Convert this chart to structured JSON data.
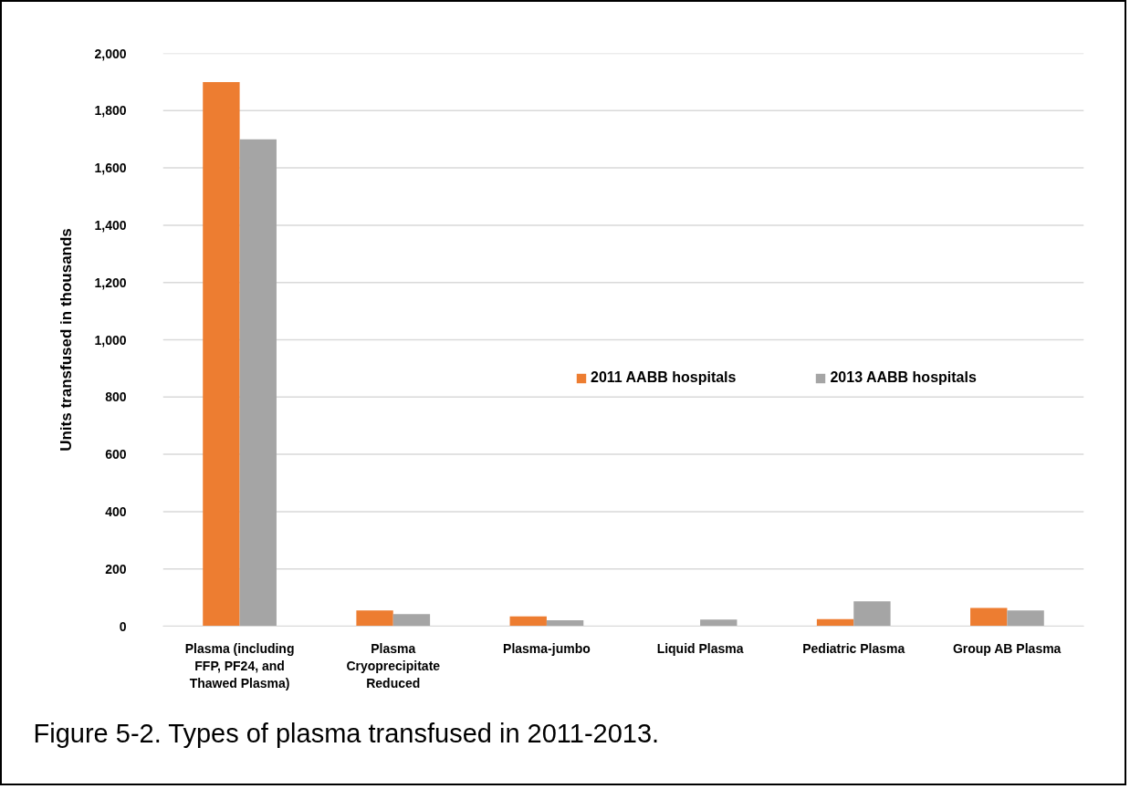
{
  "chart_data": {
    "type": "bar",
    "title": "Figure 5-2. Types of plasma transfused in 2011-2013.",
    "ylabel": "Units transfused in thousands",
    "categories": [
      "Plasma (including FFP, PF24, and Thawed Plasma)",
      "Plasma Cryoprecipitate Reduced",
      "Plasma-jumbo",
      "Liquid Plasma",
      "Pediatric Plasma",
      "Group AB Plasma"
    ],
    "series": [
      {
        "name": "2011 AABB hospitals",
        "color": "#ed7d31",
        "values": [
          1900,
          55,
          34,
          null,
          25,
          64
        ]
      },
      {
        "name": "2013 AABB hospitals",
        "color": "#a5a5a5",
        "values": [
          1700,
          42,
          21,
          23,
          87,
          55
        ]
      }
    ],
    "ylim": [
      0,
      2000
    ],
    "yticks": [
      0,
      200,
      400,
      600,
      800,
      {
        "value": 1000,
        "label": "1,000"
      },
      {
        "value": 1200,
        "label": "1,200"
      },
      {
        "value": 1400,
        "label": "1,400"
      },
      {
        "value": 1600,
        "label": "1,600"
      },
      {
        "value": 1800,
        "label": "1,800"
      },
      {
        "value": 2000,
        "label": "2,000"
      }
    ],
    "grid": "y",
    "legend": "right"
  }
}
